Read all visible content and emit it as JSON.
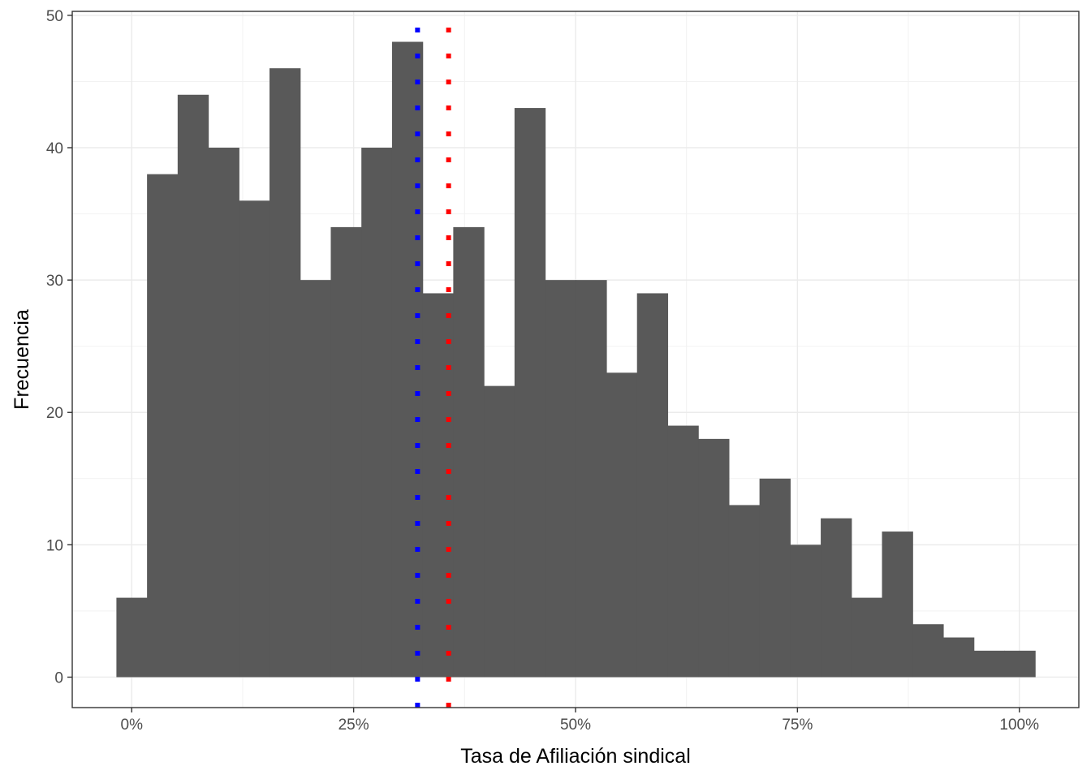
{
  "chart_data": {
    "type": "bar",
    "title": "",
    "xlabel": "Tasa de Afiliación sindical",
    "ylabel": "Frecuencia",
    "xlim": [
      -0.067,
      1.067
    ],
    "ylim": [
      -2.3,
      50.3
    ],
    "x_ticks": [
      0,
      0.25,
      0.5,
      0.75,
      1.0
    ],
    "x_tick_labels": [
      "0%",
      "25%",
      "50%",
      "75%",
      "100%"
    ],
    "y_ticks": [
      0,
      10,
      20,
      30,
      40,
      50
    ],
    "y_tick_labels": [
      "0",
      "10",
      "20",
      "30",
      "40",
      "50"
    ],
    "bin_width": 0.0345,
    "bin_centers": [
      0.0,
      0.0345,
      0.069,
      0.1035,
      0.138,
      0.1725,
      0.207,
      0.2415,
      0.276,
      0.3105,
      0.345,
      0.3795,
      0.414,
      0.4485,
      0.483,
      0.5175,
      0.552,
      0.5865,
      0.621,
      0.6555,
      0.69,
      0.7245,
      0.759,
      0.7935,
      0.828,
      0.8625,
      0.897,
      0.9315,
      0.966,
      1.0005
    ],
    "values": [
      6,
      38,
      44,
      40,
      36,
      46,
      30,
      34,
      40,
      48,
      29,
      34,
      22,
      43,
      30,
      30,
      23,
      29,
      19,
      18,
      13,
      15,
      10,
      12,
      6,
      11,
      4,
      3,
      2,
      2
    ],
    "bar_color": "#595959",
    "vlines": [
      {
        "x": 0.322,
        "color": "#0000ff",
        "linetype": "dotted"
      },
      {
        "x": 0.357,
        "color": "#ff0000",
        "linetype": "dotted"
      }
    ],
    "grid": true,
    "theme": "bw"
  }
}
